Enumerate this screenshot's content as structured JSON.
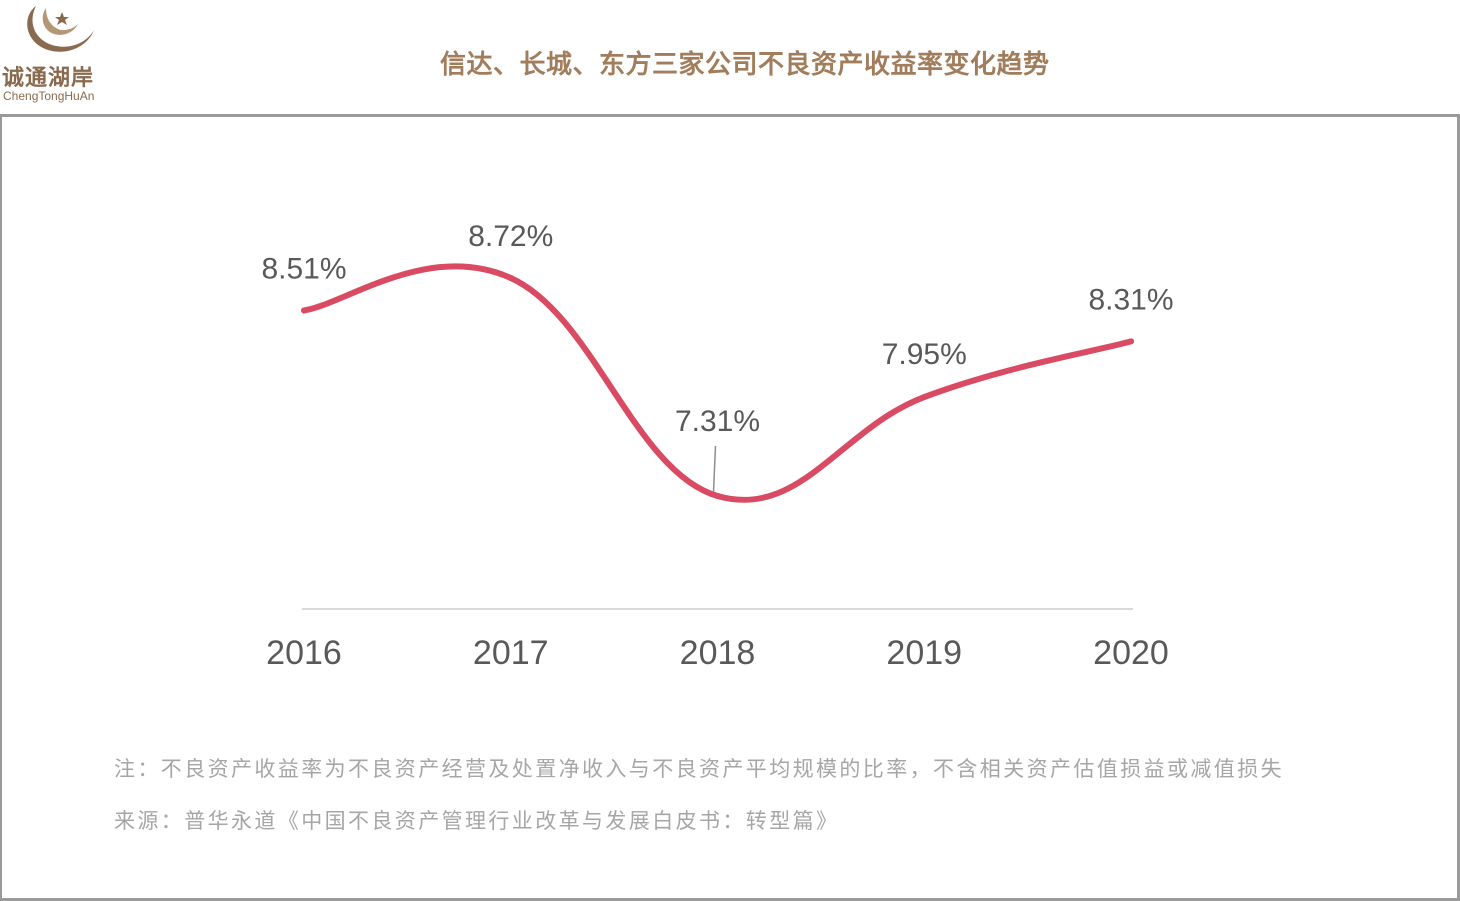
{
  "logo": {
    "name_cn": "诚通湖岸",
    "name_en": "ChengTongHuAn"
  },
  "title": "信达、长城、东方三家公司不良资产收益率变化趋势",
  "note": "注：不良资产收益率为不良资产经营及处置净收入与不良资产平均规模的比率，不含相关资产估值损益或减值损失",
  "source": "来源：普华永道《中国不良资产管理行业改革与发展白皮书：转型篇》",
  "colors": {
    "line": "#d94b63",
    "title": "#a27d5c",
    "axis": "#d9d9d9",
    "label": "#595959",
    "note": "#a6a6a6"
  },
  "chart_data": {
    "type": "line",
    "title": "信达、长城、东方三家公司不良资产收益率变化趋势",
    "categories": [
      "2016",
      "2017",
      "2018",
      "2019",
      "2020"
    ],
    "series": [
      {
        "values": [
          8.51,
          8.72,
          7.31,
          7.95,
          8.31
        ],
        "labels": [
          "8.51%",
          "8.72%",
          "7.31%",
          "7.95%",
          "8.31%"
        ]
      }
    ],
    "ylim": [
      6.5,
      9.0
    ],
    "smooth": true,
    "grid": false,
    "legend": "none"
  }
}
